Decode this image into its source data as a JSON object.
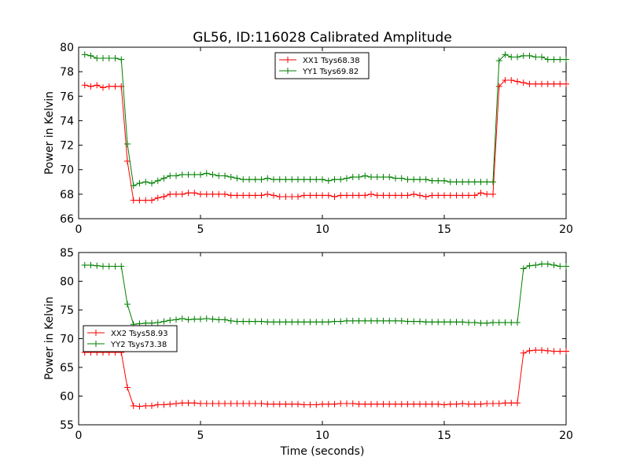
{
  "figure": {
    "title": "GL56, ID:116028 Calibrated Amplitude",
    "xlabel": "Time (seconds)"
  },
  "colors": {
    "xx": "#ff0000",
    "yy": "#008000"
  },
  "chart_data": [
    {
      "type": "line",
      "ylabel": "Power in Kelvin",
      "xlim": [
        0,
        20
      ],
      "ylim": [
        66,
        80
      ],
      "x_ticks": [
        "0",
        "5",
        "10",
        "15",
        "20"
      ],
      "y_ticks": [
        "66",
        "68",
        "70",
        "72",
        "74",
        "76",
        "78",
        "80"
      ],
      "legend_placement": "top-center",
      "x": [
        0.25,
        0.5,
        0.75,
        1.0,
        1.25,
        1.5,
        1.75,
        2.0,
        2.25,
        2.5,
        2.75,
        3.0,
        3.25,
        3.5,
        3.75,
        4.0,
        4.25,
        4.5,
        4.75,
        5.0,
        5.25,
        5.5,
        5.75,
        6.0,
        6.25,
        6.5,
        6.75,
        7.0,
        7.25,
        7.5,
        7.75,
        8.0,
        8.25,
        8.5,
        8.75,
        9.0,
        9.25,
        9.5,
        9.75,
        10.0,
        10.25,
        10.5,
        10.75,
        11.0,
        11.25,
        11.5,
        11.75,
        12.0,
        12.25,
        12.5,
        12.75,
        13.0,
        13.25,
        13.5,
        13.75,
        14.0,
        14.25,
        14.5,
        14.75,
        15.0,
        15.25,
        15.5,
        15.75,
        16.0,
        16.25,
        16.5,
        16.75,
        17.0,
        17.25,
        17.5,
        17.75,
        18.0,
        18.25,
        18.5,
        18.75,
        19.0,
        19.25,
        19.5,
        19.75,
        20.0
      ],
      "series": [
        {
          "name": "XX1 Tsys68.38",
          "color": "#ff0000",
          "values": [
            76.9,
            76.8,
            76.9,
            76.7,
            76.8,
            76.8,
            76.8,
            70.7,
            67.5,
            67.5,
            67.5,
            67.5,
            67.7,
            67.8,
            68.0,
            68.0,
            68.0,
            68.1,
            68.1,
            68.0,
            68.0,
            68.0,
            68.0,
            68.0,
            67.9,
            67.9,
            67.9,
            67.9,
            67.9,
            67.9,
            68.0,
            67.9,
            67.8,
            67.8,
            67.8,
            67.8,
            67.9,
            67.9,
            67.9,
            67.9,
            67.9,
            67.8,
            67.9,
            67.9,
            67.9,
            67.9,
            67.9,
            68.0,
            67.9,
            67.9,
            67.9,
            67.9,
            67.9,
            67.9,
            68.0,
            67.9,
            67.8,
            67.9,
            67.9,
            67.9,
            67.9,
            67.9,
            67.9,
            67.9,
            67.9,
            68.1,
            68.0,
            68.0,
            76.8,
            77.3,
            77.3,
            77.2,
            77.1,
            77.0,
            77.0,
            77.0,
            77.0,
            77.0,
            77.0,
            77.0
          ]
        },
        {
          "name": "YY1 Tsys69.82",
          "color": "#008000",
          "values": [
            79.4,
            79.3,
            79.1,
            79.1,
            79.1,
            79.1,
            79.0,
            72.1,
            68.7,
            68.9,
            69.0,
            68.9,
            69.1,
            69.3,
            69.5,
            69.5,
            69.6,
            69.6,
            69.6,
            69.6,
            69.7,
            69.6,
            69.5,
            69.5,
            69.4,
            69.3,
            69.2,
            69.2,
            69.2,
            69.2,
            69.3,
            69.2,
            69.2,
            69.2,
            69.2,
            69.2,
            69.2,
            69.2,
            69.2,
            69.2,
            69.1,
            69.2,
            69.2,
            69.3,
            69.4,
            69.4,
            69.5,
            69.4,
            69.4,
            69.4,
            69.4,
            69.3,
            69.3,
            69.2,
            69.2,
            69.2,
            69.2,
            69.1,
            69.1,
            69.1,
            69.0,
            69.0,
            69.0,
            69.0,
            69.0,
            69.0,
            69.0,
            69.0,
            78.9,
            79.4,
            79.2,
            79.2,
            79.3,
            79.3,
            79.2,
            79.2,
            79.0,
            79.0,
            79.0,
            79.0
          ]
        }
      ]
    },
    {
      "type": "line",
      "ylabel": "Power in Kelvin",
      "xlim": [
        0,
        20
      ],
      "ylim": [
        55,
        85
      ],
      "x_ticks": [
        "0",
        "5",
        "10",
        "15",
        "20"
      ],
      "y_ticks": [
        "55",
        "60",
        "65",
        "70",
        "75",
        "80",
        "85"
      ],
      "legend_placement": "center-left",
      "x": [
        0.25,
        0.5,
        0.75,
        1.0,
        1.25,
        1.5,
        1.75,
        2.0,
        2.25,
        2.5,
        2.75,
        3.0,
        3.25,
        3.5,
        3.75,
        4.0,
        4.25,
        4.5,
        4.75,
        5.0,
        5.25,
        5.5,
        5.75,
        6.0,
        6.25,
        6.5,
        6.75,
        7.0,
        7.25,
        7.5,
        7.75,
        8.0,
        8.25,
        8.5,
        8.75,
        9.0,
        9.25,
        9.5,
        9.75,
        10.0,
        10.25,
        10.5,
        10.75,
        11.0,
        11.25,
        11.5,
        11.75,
        12.0,
        12.25,
        12.5,
        12.75,
        13.0,
        13.25,
        13.5,
        13.75,
        14.0,
        14.25,
        14.5,
        14.75,
        15.0,
        15.25,
        15.5,
        15.75,
        16.0,
        16.25,
        16.5,
        16.75,
        17.0,
        17.25,
        17.5,
        17.75,
        18.0,
        18.25,
        18.5,
        18.75,
        19.0,
        19.25,
        19.5,
        19.75,
        20.0
      ],
      "series": [
        {
          "name": "XX2 Tsys58.93",
          "color": "#ff0000",
          "values": [
            67.6,
            67.6,
            67.6,
            67.6,
            67.6,
            67.6,
            67.6,
            61.5,
            58.3,
            58.2,
            58.3,
            58.3,
            58.5,
            58.5,
            58.6,
            58.7,
            58.8,
            58.8,
            58.8,
            58.7,
            58.7,
            58.7,
            58.7,
            58.7,
            58.7,
            58.7,
            58.7,
            58.7,
            58.7,
            58.7,
            58.6,
            58.6,
            58.6,
            58.6,
            58.6,
            58.6,
            58.5,
            58.5,
            58.5,
            58.6,
            58.6,
            58.6,
            58.7,
            58.7,
            58.7,
            58.6,
            58.6,
            58.6,
            58.6,
            58.6,
            58.6,
            58.6,
            58.6,
            58.6,
            58.6,
            58.6,
            58.6,
            58.6,
            58.6,
            58.5,
            58.6,
            58.6,
            58.7,
            58.6,
            58.6,
            58.6,
            58.7,
            58.7,
            58.7,
            58.8,
            58.8,
            58.8,
            67.5,
            67.9,
            68.0,
            68.0,
            67.9,
            67.8,
            67.8,
            67.8
          ]
        },
        {
          "name": "YY2 Tsys73.38",
          "color": "#008000",
          "values": [
            82.8,
            82.8,
            82.7,
            82.6,
            82.6,
            82.6,
            82.6,
            76.0,
            72.5,
            72.6,
            72.7,
            72.7,
            72.8,
            73.0,
            73.2,
            73.3,
            73.5,
            73.3,
            73.4,
            73.4,
            73.5,
            73.4,
            73.3,
            73.3,
            73.1,
            73.0,
            73.0,
            73.0,
            73.0,
            73.0,
            72.9,
            72.9,
            72.9,
            72.9,
            72.9,
            72.9,
            72.9,
            72.9,
            72.9,
            72.9,
            72.9,
            73.0,
            73.0,
            73.1,
            73.1,
            73.1,
            73.1,
            73.1,
            73.1,
            73.1,
            73.1,
            73.1,
            73.1,
            73.0,
            73.0,
            73.0,
            72.9,
            72.9,
            72.9,
            72.9,
            72.9,
            72.9,
            72.9,
            72.8,
            72.8,
            72.7,
            72.7,
            72.8,
            72.8,
            72.8,
            72.8,
            72.8,
            82.2,
            82.7,
            82.8,
            83.0,
            83.0,
            82.8,
            82.6,
            82.6
          ]
        }
      ]
    }
  ]
}
